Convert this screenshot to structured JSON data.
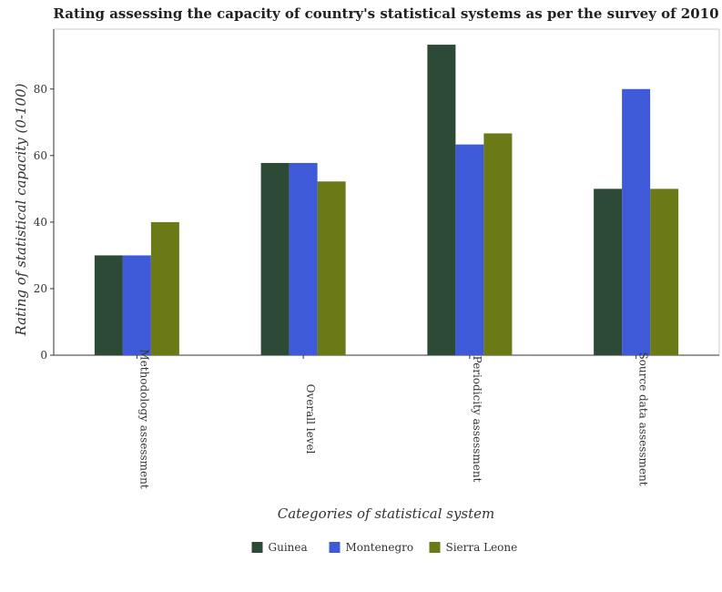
{
  "chart_data": {
    "type": "bar",
    "title": "Rating assessing the capacity of country's statistical systems as per the survey of 2010",
    "xlabel": "Categories of statistical system",
    "ylabel": "Rating of statistical capacity (0-100)",
    "ylim": [
      0,
      98
    ],
    "yticks": [
      0,
      20,
      40,
      60,
      80
    ],
    "grid": false,
    "legend_position": "bottom-center",
    "categories": [
      "Methodology assessment",
      "Overall level",
      "Periodicity assessment",
      "Source data assessment"
    ],
    "series": [
      {
        "name": "Guinea",
        "color": "#2d4a36",
        "values": [
          30,
          57.78,
          93.33,
          50
        ]
      },
      {
        "name": "Montenegro",
        "color": "#3f5ad8",
        "values": [
          30,
          57.78,
          63.33,
          80
        ]
      },
      {
        "name": "Sierra Leone",
        "color": "#6b7a17",
        "values": [
          40,
          52.22,
          66.67,
          50
        ]
      }
    ]
  }
}
